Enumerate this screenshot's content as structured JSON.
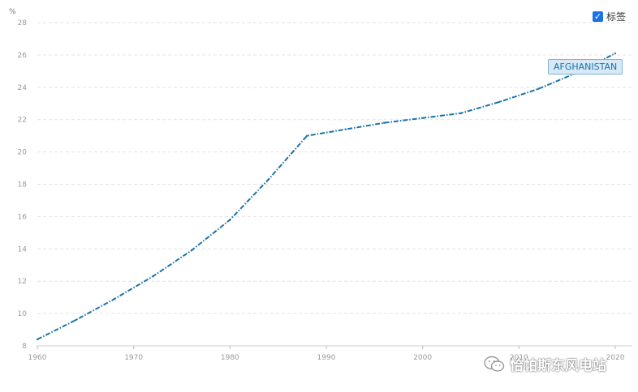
{
  "chart_data": {
    "type": "line",
    "unit": "%",
    "x": [
      1960,
      1964,
      1968,
      1972,
      1976,
      1980,
      1984,
      1988,
      1992,
      1996,
      2000,
      2004,
      2008,
      2012,
      2016,
      2020
    ],
    "series": [
      {
        "name": "AFGHANISTAN",
        "values": [
          8.4,
          9.6,
          10.9,
          12.3,
          13.9,
          15.8,
          18.3,
          21.0,
          21.4,
          21.8,
          22.1,
          22.4,
          23.1,
          23.9,
          24.9,
          26.1
        ]
      }
    ],
    "xlim": [
      1960,
      2020
    ],
    "ylim": [
      8,
      28
    ],
    "x_ticks": [
      "1960",
      "1970",
      "1980",
      "1990",
      "2000",
      "2010",
      "2020"
    ],
    "y_ticks": [
      "8",
      "10",
      "12",
      "14",
      "16",
      "18",
      "20",
      "22",
      "24",
      "26",
      "28"
    ],
    "grid": true,
    "line_style": "dash-dot",
    "color": "#1a73a8"
  },
  "legend_toggle": {
    "label": "标签",
    "checked": true
  },
  "watermark": {
    "text": "恰帕斯东风电站",
    "icon": "wechat-icon"
  }
}
